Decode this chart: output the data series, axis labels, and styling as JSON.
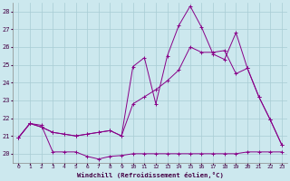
{
  "xlabel": "Windchill (Refroidissement éolien,°C)",
  "background_color": "#cce8ee",
  "grid_color": "#a8ccd4",
  "line_color": "#880088",
  "ylim": [
    19.5,
    28.5
  ],
  "xlim": [
    -0.5,
    23.5
  ],
  "yticks": [
    20,
    21,
    22,
    23,
    24,
    25,
    26,
    27,
    28
  ],
  "xticks": [
    0,
    1,
    2,
    3,
    4,
    5,
    6,
    7,
    8,
    9,
    10,
    11,
    12,
    13,
    14,
    15,
    16,
    17,
    18,
    19,
    20,
    21,
    22,
    23
  ],
  "line1_x": [
    0,
    1,
    2,
    3,
    4,
    5,
    6,
    7,
    8,
    9,
    10,
    11,
    12,
    13,
    14,
    15,
    16,
    17,
    18,
    19,
    20,
    21,
    22,
    23
  ],
  "line1_y": [
    20.9,
    21.7,
    21.6,
    20.1,
    20.1,
    20.1,
    19.85,
    19.7,
    19.85,
    19.9,
    20.0,
    20.0,
    20.0,
    20.0,
    20.0,
    20.0,
    20.0,
    20.0,
    20.0,
    20.0,
    20.1,
    20.1,
    20.1,
    20.1
  ],
  "line2_x": [
    0,
    1,
    2,
    3,
    4,
    5,
    6,
    7,
    8,
    9,
    10,
    11,
    12,
    13,
    14,
    15,
    16,
    17,
    18,
    19,
    20,
    21,
    22,
    23
  ],
  "line2_y": [
    20.9,
    21.7,
    21.5,
    21.2,
    21.1,
    21.0,
    21.1,
    21.2,
    21.3,
    21.0,
    22.8,
    23.2,
    23.6,
    24.1,
    24.7,
    26.0,
    25.7,
    25.7,
    25.8,
    24.5,
    24.8,
    23.2,
    21.9,
    20.5
  ],
  "line3_x": [
    0,
    1,
    2,
    3,
    4,
    5,
    6,
    7,
    8,
    9,
    10,
    11,
    12,
    13,
    14,
    15,
    16,
    17,
    18,
    19,
    20,
    21,
    22,
    23
  ],
  "line3_y": [
    20.9,
    21.7,
    21.5,
    21.2,
    21.1,
    21.0,
    21.1,
    21.2,
    21.3,
    21.0,
    24.9,
    25.4,
    22.8,
    25.5,
    27.2,
    28.3,
    27.1,
    25.6,
    25.3,
    26.8,
    24.8,
    23.2,
    21.9,
    20.5
  ]
}
